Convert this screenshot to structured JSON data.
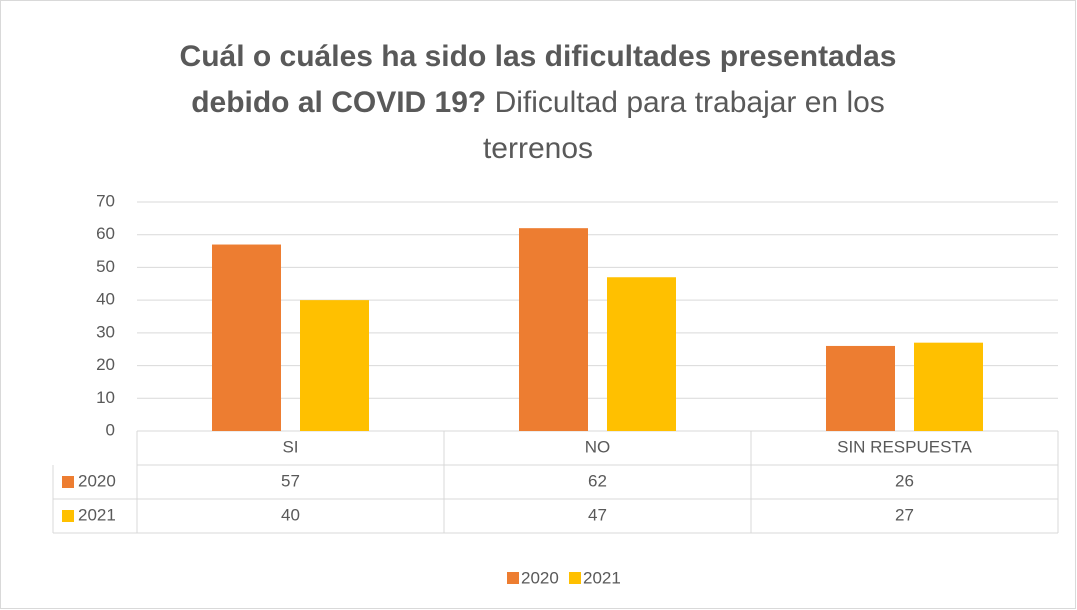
{
  "chart_data": {
    "type": "bar",
    "title": "Cuál o cuáles ha sido las dificultades presentadas debido al COVID 19?",
    "subtitle": "Dificultad para trabajar en los terrenos",
    "categories": [
      "SI",
      "NO",
      "SIN RESPUESTA"
    ],
    "series": [
      {
        "name": "2020",
        "color": "#ed7d31",
        "values": [
          57,
          62,
          26
        ]
      },
      {
        "name": "2021",
        "color": "#ffc000",
        "values": [
          40,
          47,
          27
        ]
      }
    ],
    "ylim": [
      0,
      70
    ],
    "yticks": [
      0,
      10,
      20,
      30,
      40,
      50,
      60,
      70
    ],
    "grid": true,
    "legend": "bottom"
  }
}
